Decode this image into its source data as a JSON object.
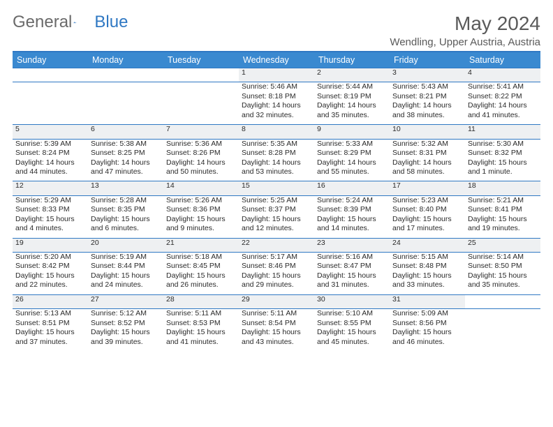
{
  "logo": {
    "text_general": "General",
    "text_blue": "Blue",
    "icon_color": "#2f78c3",
    "general_color": "#6a6a6a"
  },
  "header": {
    "month_title": "May 2024",
    "location": "Wendling, Upper Austria, Austria"
  },
  "colors": {
    "header_bg": "#3a89d0",
    "rule": "#2f78c3",
    "daynum_bg": "#eef0f2",
    "text": "#2a2a2a"
  },
  "weekdays": [
    "Sunday",
    "Monday",
    "Tuesday",
    "Wednesday",
    "Thursday",
    "Friday",
    "Saturday"
  ],
  "weeks": [
    {
      "days": [
        null,
        null,
        null,
        {
          "num": "1",
          "sunrise": "Sunrise: 5:46 AM",
          "sunset": "Sunset: 8:18 PM",
          "daylight": "Daylight: 14 hours and 32 minutes."
        },
        {
          "num": "2",
          "sunrise": "Sunrise: 5:44 AM",
          "sunset": "Sunset: 8:19 PM",
          "daylight": "Daylight: 14 hours and 35 minutes."
        },
        {
          "num": "3",
          "sunrise": "Sunrise: 5:43 AM",
          "sunset": "Sunset: 8:21 PM",
          "daylight": "Daylight: 14 hours and 38 minutes."
        },
        {
          "num": "4",
          "sunrise": "Sunrise: 5:41 AM",
          "sunset": "Sunset: 8:22 PM",
          "daylight": "Daylight: 14 hours and 41 minutes."
        }
      ]
    },
    {
      "days": [
        {
          "num": "5",
          "sunrise": "Sunrise: 5:39 AM",
          "sunset": "Sunset: 8:24 PM",
          "daylight": "Daylight: 14 hours and 44 minutes."
        },
        {
          "num": "6",
          "sunrise": "Sunrise: 5:38 AM",
          "sunset": "Sunset: 8:25 PM",
          "daylight": "Daylight: 14 hours and 47 minutes."
        },
        {
          "num": "7",
          "sunrise": "Sunrise: 5:36 AM",
          "sunset": "Sunset: 8:26 PM",
          "daylight": "Daylight: 14 hours and 50 minutes."
        },
        {
          "num": "8",
          "sunrise": "Sunrise: 5:35 AM",
          "sunset": "Sunset: 8:28 PM",
          "daylight": "Daylight: 14 hours and 53 minutes."
        },
        {
          "num": "9",
          "sunrise": "Sunrise: 5:33 AM",
          "sunset": "Sunset: 8:29 PM",
          "daylight": "Daylight: 14 hours and 55 minutes."
        },
        {
          "num": "10",
          "sunrise": "Sunrise: 5:32 AM",
          "sunset": "Sunset: 8:31 PM",
          "daylight": "Daylight: 14 hours and 58 minutes."
        },
        {
          "num": "11",
          "sunrise": "Sunrise: 5:30 AM",
          "sunset": "Sunset: 8:32 PM",
          "daylight": "Daylight: 15 hours and 1 minute."
        }
      ]
    },
    {
      "days": [
        {
          "num": "12",
          "sunrise": "Sunrise: 5:29 AM",
          "sunset": "Sunset: 8:33 PM",
          "daylight": "Daylight: 15 hours and 4 minutes."
        },
        {
          "num": "13",
          "sunrise": "Sunrise: 5:28 AM",
          "sunset": "Sunset: 8:35 PM",
          "daylight": "Daylight: 15 hours and 6 minutes."
        },
        {
          "num": "14",
          "sunrise": "Sunrise: 5:26 AM",
          "sunset": "Sunset: 8:36 PM",
          "daylight": "Daylight: 15 hours and 9 minutes."
        },
        {
          "num": "15",
          "sunrise": "Sunrise: 5:25 AM",
          "sunset": "Sunset: 8:37 PM",
          "daylight": "Daylight: 15 hours and 12 minutes."
        },
        {
          "num": "16",
          "sunrise": "Sunrise: 5:24 AM",
          "sunset": "Sunset: 8:39 PM",
          "daylight": "Daylight: 15 hours and 14 minutes."
        },
        {
          "num": "17",
          "sunrise": "Sunrise: 5:23 AM",
          "sunset": "Sunset: 8:40 PM",
          "daylight": "Daylight: 15 hours and 17 minutes."
        },
        {
          "num": "18",
          "sunrise": "Sunrise: 5:21 AM",
          "sunset": "Sunset: 8:41 PM",
          "daylight": "Daylight: 15 hours and 19 minutes."
        }
      ]
    },
    {
      "days": [
        {
          "num": "19",
          "sunrise": "Sunrise: 5:20 AM",
          "sunset": "Sunset: 8:42 PM",
          "daylight": "Daylight: 15 hours and 22 minutes."
        },
        {
          "num": "20",
          "sunrise": "Sunrise: 5:19 AM",
          "sunset": "Sunset: 8:44 PM",
          "daylight": "Daylight: 15 hours and 24 minutes."
        },
        {
          "num": "21",
          "sunrise": "Sunrise: 5:18 AM",
          "sunset": "Sunset: 8:45 PM",
          "daylight": "Daylight: 15 hours and 26 minutes."
        },
        {
          "num": "22",
          "sunrise": "Sunrise: 5:17 AM",
          "sunset": "Sunset: 8:46 PM",
          "daylight": "Daylight: 15 hours and 29 minutes."
        },
        {
          "num": "23",
          "sunrise": "Sunrise: 5:16 AM",
          "sunset": "Sunset: 8:47 PM",
          "daylight": "Daylight: 15 hours and 31 minutes."
        },
        {
          "num": "24",
          "sunrise": "Sunrise: 5:15 AM",
          "sunset": "Sunset: 8:48 PM",
          "daylight": "Daylight: 15 hours and 33 minutes."
        },
        {
          "num": "25",
          "sunrise": "Sunrise: 5:14 AM",
          "sunset": "Sunset: 8:50 PM",
          "daylight": "Daylight: 15 hours and 35 minutes."
        }
      ]
    },
    {
      "days": [
        {
          "num": "26",
          "sunrise": "Sunrise: 5:13 AM",
          "sunset": "Sunset: 8:51 PM",
          "daylight": "Daylight: 15 hours and 37 minutes."
        },
        {
          "num": "27",
          "sunrise": "Sunrise: 5:12 AM",
          "sunset": "Sunset: 8:52 PM",
          "daylight": "Daylight: 15 hours and 39 minutes."
        },
        {
          "num": "28",
          "sunrise": "Sunrise: 5:11 AM",
          "sunset": "Sunset: 8:53 PM",
          "daylight": "Daylight: 15 hours and 41 minutes."
        },
        {
          "num": "29",
          "sunrise": "Sunrise: 5:11 AM",
          "sunset": "Sunset: 8:54 PM",
          "daylight": "Daylight: 15 hours and 43 minutes."
        },
        {
          "num": "30",
          "sunrise": "Sunrise: 5:10 AM",
          "sunset": "Sunset: 8:55 PM",
          "daylight": "Daylight: 15 hours and 45 minutes."
        },
        {
          "num": "31",
          "sunrise": "Sunrise: 5:09 AM",
          "sunset": "Sunset: 8:56 PM",
          "daylight": "Daylight: 15 hours and 46 minutes."
        },
        null
      ]
    }
  ]
}
